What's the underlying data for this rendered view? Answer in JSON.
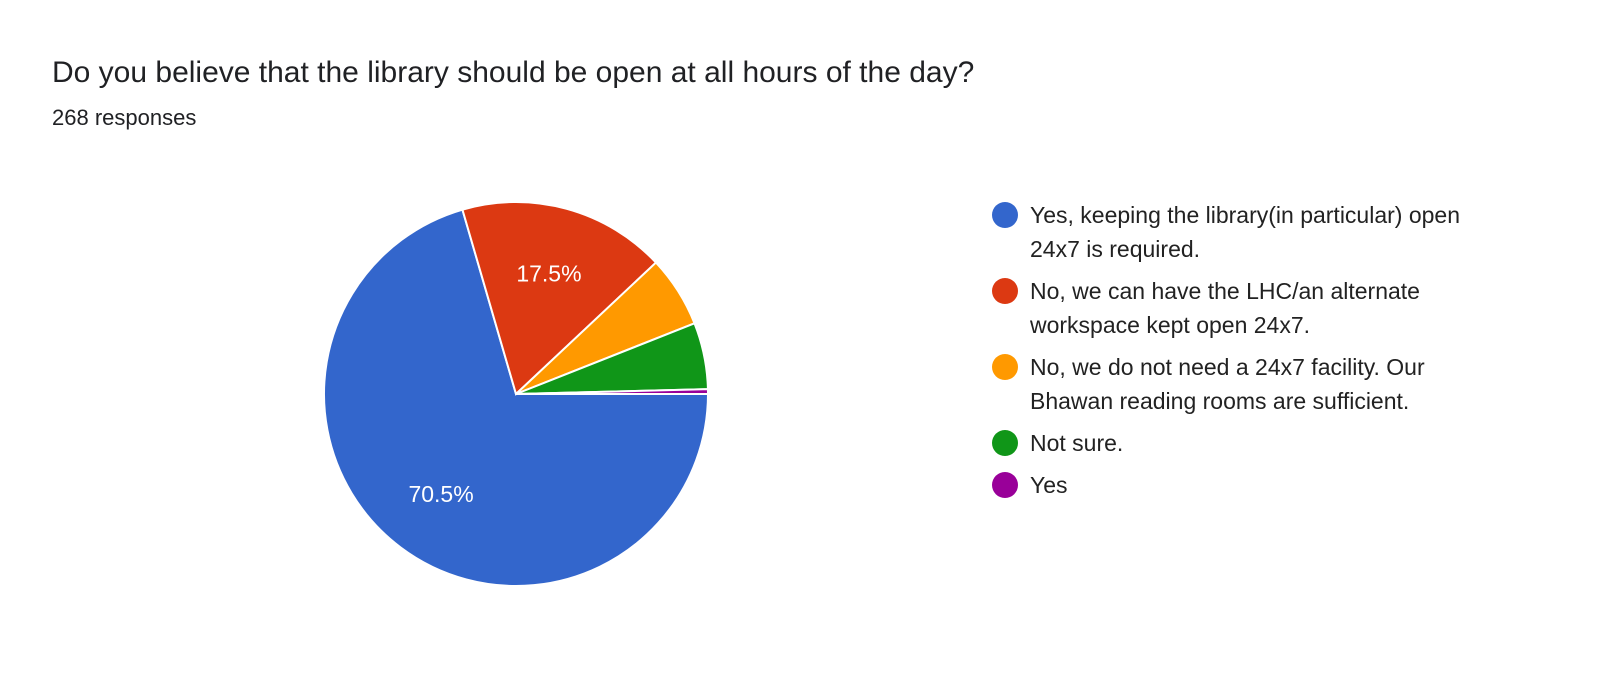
{
  "header": {
    "title": "Do you believe that the library should be open at all hours of the day?",
    "responses": "268 responses"
  },
  "chart_data": {
    "type": "pie",
    "total_responses": 268,
    "legend_position": "right",
    "slices": [
      {
        "label": "Yes, keeping the library(in particular) open 24x7 is required.",
        "value": 70.5,
        "display": "70.5%",
        "color": "#3366cc"
      },
      {
        "label": "No, we can have the LHC/an alternate workspace kept open 24x7.",
        "value": 17.5,
        "display": "17.5%",
        "color": "#dc3912"
      },
      {
        "label": "No, we do not need a 24x7 facility. Our Bhawan reading rooms are sufficient.",
        "value": 6.0,
        "display": "",
        "color": "#ff9900"
      },
      {
        "label": "Not sure.",
        "value": 5.6,
        "display": "",
        "color": "#109618"
      },
      {
        "label": "Yes",
        "value": 0.4,
        "display": "",
        "color": "#990099"
      }
    ]
  }
}
